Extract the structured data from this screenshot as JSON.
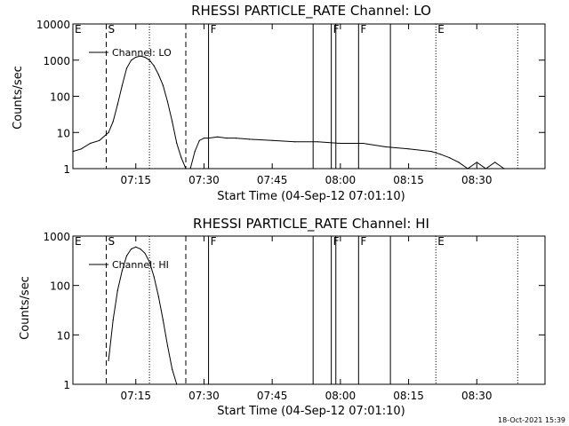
{
  "footer": {
    "timestamp": "18-Oct-2021 15:39"
  },
  "chart_data": [
    {
      "type": "line",
      "title": "RHESSI PARTICLE_RATE Channel: LO",
      "xlabel": "Start Time (04-Sep-12 07:01:10)",
      "ylabel": "Counts/sec",
      "y_scale": "log",
      "xlim": [
        "07:01:10",
        "08:45:00"
      ],
      "ylim": [
        1,
        10000
      ],
      "x_ticks": [
        "07:15",
        "07:30",
        "07:45",
        "08:00",
        "08:15",
        "08:30"
      ],
      "y_ticks": [
        "1",
        "10",
        "100",
        "1000",
        "10000"
      ],
      "series": [
        {
          "name": "Channel: LO",
          "x": [
            "07:01:10",
            "07:03",
            "07:05",
            "07:07",
            "07:09",
            "07:10",
            "07:11",
            "07:12",
            "07:13",
            "07:14",
            "07:15",
            "07:16",
            "07:17",
            "07:18",
            "07:19",
            "07:20",
            "07:21",
            "07:22",
            "07:23",
            "07:24",
            "07:25",
            "07:26",
            "07:27",
            "07:28",
            "07:29",
            "07:30",
            "07:31",
            "07:33",
            "07:35",
            "07:37",
            "07:40",
            "07:45",
            "07:50",
            "07:55",
            "08:00",
            "08:05",
            "08:10",
            "08:15",
            "08:20",
            "08:22",
            "08:24",
            "08:26",
            "08:28",
            "08:30",
            "08:32",
            "08:34",
            "08:36"
          ],
          "values": [
            3,
            3.5,
            5,
            6,
            10,
            20,
            60,
            200,
            600,
            1000,
            1200,
            1300,
            1200,
            1000,
            700,
            400,
            200,
            70,
            20,
            5,
            2,
            1,
            1,
            3,
            6,
            7,
            7,
            7.5,
            7,
            7,
            6.5,
            6,
            5.5,
            5.5,
            5,
            5,
            4,
            3.5,
            3,
            2.5,
            2,
            1.5,
            1,
            1.5,
            1,
            1.5,
            1
          ]
        }
      ],
      "markers": [
        {
          "label": "E",
          "time": "07:01:10",
          "style": "dotted"
        },
        {
          "label": "S",
          "time": "07:08:30",
          "style": "dashed"
        },
        {
          "label": "",
          "time": "07:18",
          "style": "dotted"
        },
        {
          "label": "",
          "time": "07:26",
          "style": "dashed"
        },
        {
          "label": "F",
          "time": "07:31",
          "style": "solid"
        },
        {
          "label": "",
          "time": "07:54",
          "style": "solid"
        },
        {
          "label": "F",
          "time": "07:58",
          "style": "solid"
        },
        {
          "label": "",
          "time": "07:59",
          "style": "solid"
        },
        {
          "label": "F",
          "time": "08:04",
          "style": "solid"
        },
        {
          "label": "",
          "time": "08:11",
          "style": "solid"
        },
        {
          "label": "E",
          "time": "08:21",
          "style": "dotted"
        },
        {
          "label": "",
          "time": "08:39",
          "style": "dotted"
        }
      ]
    },
    {
      "type": "line",
      "title": "RHESSI PARTICLE_RATE Channel: HI",
      "xlabel": "Start Time (04-Sep-12 07:01:10)",
      "ylabel": "Counts/sec",
      "y_scale": "log",
      "xlim": [
        "07:01:10",
        "08:45:00"
      ],
      "ylim": [
        1,
        1000
      ],
      "x_ticks": [
        "07:15",
        "07:30",
        "07:45",
        "08:00",
        "08:15",
        "08:30"
      ],
      "y_ticks": [
        "1",
        "10",
        "100",
        "1000"
      ],
      "series": [
        {
          "name": "Channel: HI",
          "x": [
            "07:09",
            "07:10",
            "07:11",
            "07:12",
            "07:13",
            "07:14",
            "07:15",
            "07:16",
            "07:17",
            "07:18",
            "07:19",
            "07:20",
            "07:21",
            "07:22",
            "07:23",
            "07:24"
          ],
          "values": [
            3,
            20,
            80,
            200,
            400,
            550,
            600,
            550,
            450,
            300,
            150,
            60,
            20,
            6,
            2,
            1
          ]
        }
      ],
      "markers": [
        {
          "label": "E",
          "time": "07:01:10",
          "style": "dotted"
        },
        {
          "label": "S",
          "time": "07:08:30",
          "style": "dashed"
        },
        {
          "label": "",
          "time": "07:18",
          "style": "dotted"
        },
        {
          "label": "",
          "time": "07:26",
          "style": "dashed"
        },
        {
          "label": "F",
          "time": "07:31",
          "style": "solid"
        },
        {
          "label": "",
          "time": "07:54",
          "style": "solid"
        },
        {
          "label": "F",
          "time": "07:58",
          "style": "solid"
        },
        {
          "label": "",
          "time": "07:59",
          "style": "solid"
        },
        {
          "label": "F",
          "time": "08:04",
          "style": "solid"
        },
        {
          "label": "",
          "time": "08:11",
          "style": "solid"
        },
        {
          "label": "E",
          "time": "08:21",
          "style": "dotted"
        },
        {
          "label": "",
          "time": "08:39",
          "style": "dotted"
        }
      ]
    }
  ]
}
